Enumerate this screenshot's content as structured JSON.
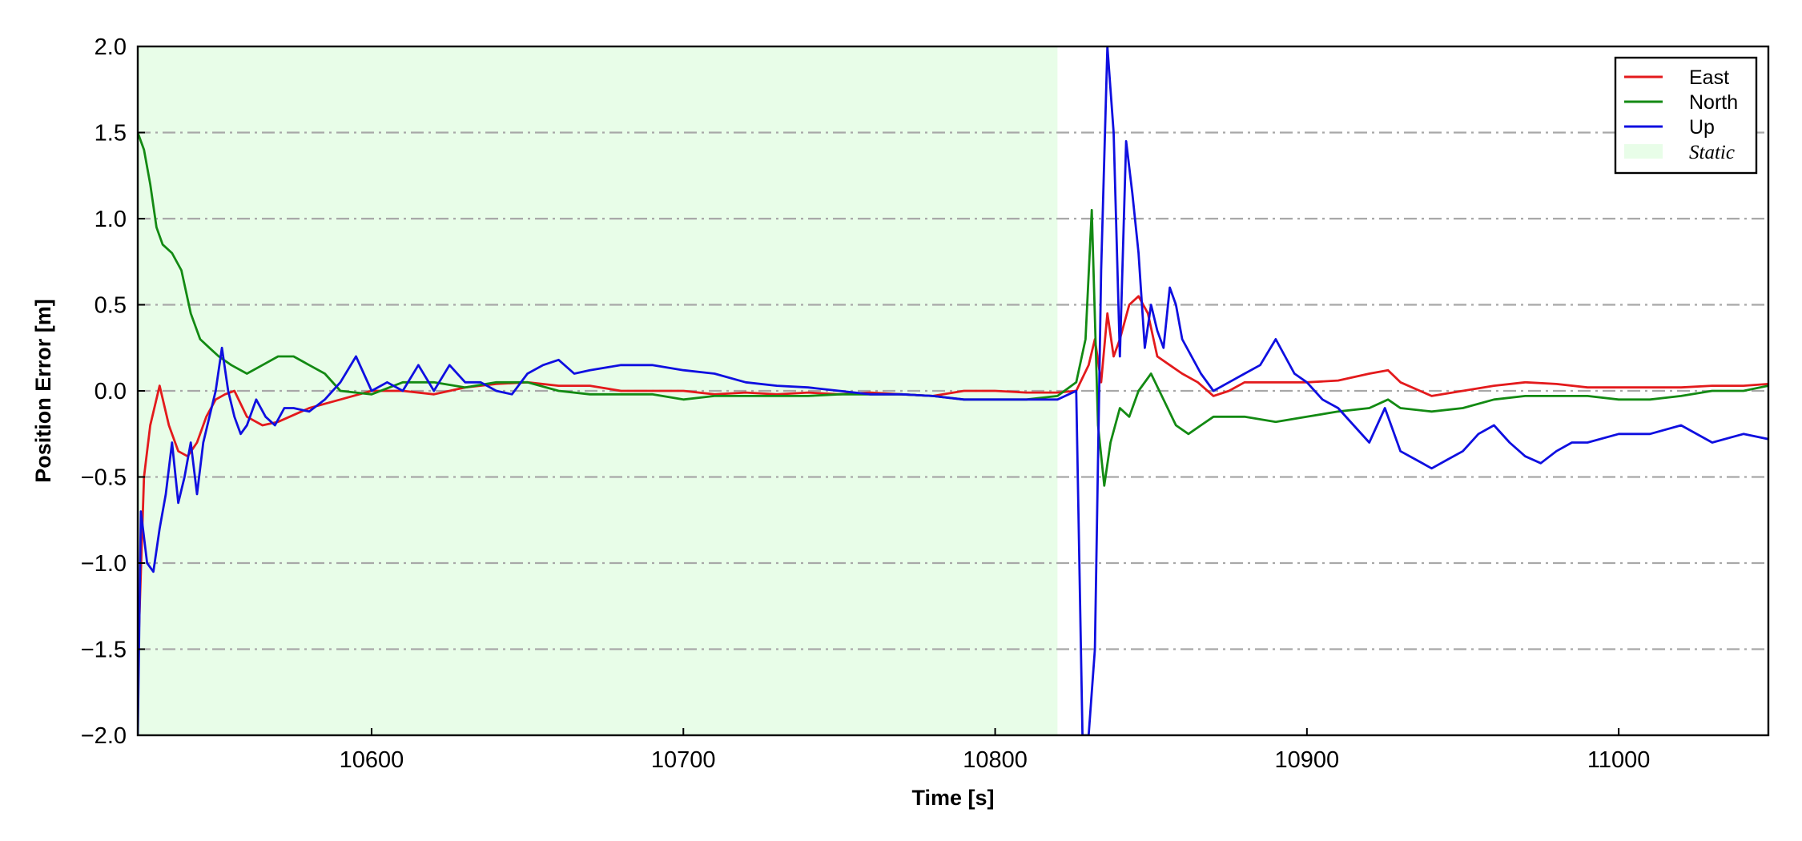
{
  "chart_data": {
    "type": "line",
    "xlabel": "Time [s]",
    "ylabel": "Position Error [m]",
    "xlim": [
      10525,
      11048
    ],
    "ylim": [
      -2.0,
      2.0
    ],
    "xticks": [
      10600,
      10700,
      10800,
      10900,
      11000
    ],
    "xtick_labels": [
      "10600",
      "10700",
      "10800",
      "10900",
      "11000"
    ],
    "yticks": [
      2.0,
      1.5,
      1.0,
      0.5,
      0.0,
      -0.5,
      -1.0,
      -1.5,
      -2.0
    ],
    "ytick_labels": [
      "2.0",
      "1.5",
      "1.0",
      "0.5",
      "0.0",
      "−0.5",
      "−1.0",
      "−1.5",
      "−2.0"
    ],
    "grid": "horizontal dash-dot",
    "legend_position": "top-right",
    "static_region": {
      "label": "Static",
      "x": [
        10525,
        10820
      ],
      "color": "#e8fde8"
    },
    "series": [
      {
        "name": "East",
        "color": "#e31a1c",
        "x": [
          10525,
          10527,
          10529,
          10532,
          10535,
          10538,
          10541,
          10544,
          10547,
          10550,
          10553,
          10556,
          10560,
          10565,
          10570,
          10580,
          10590,
          10600,
          10610,
          10620,
          10630,
          10640,
          10650,
          10660,
          10670,
          10680,
          10690,
          10700,
          10710,
          10720,
          10730,
          10740,
          10750,
          10760,
          10770,
          10780,
          10790,
          10800,
          10810,
          10820,
          10826,
          10830,
          10832,
          10834,
          10836,
          10838,
          10840,
          10843,
          10846,
          10849,
          10852,
          10856,
          10860,
          10865,
          10870,
          10875,
          10880,
          10890,
          10900,
          10910,
          10920,
          10926,
          10930,
          10940,
          10950,
          10960,
          10970,
          10980,
          10990,
          11000,
          11010,
          11020,
          11030,
          11040,
          11048
        ],
        "values": [
          -1.6,
          -0.5,
          -0.2,
          0.03,
          -0.2,
          -0.35,
          -0.38,
          -0.3,
          -0.15,
          -0.05,
          -0.02,
          0.0,
          -0.15,
          -0.2,
          -0.18,
          -0.1,
          -0.05,
          0.0,
          0.0,
          -0.02,
          0.02,
          0.04,
          0.05,
          0.03,
          0.03,
          0.0,
          0.0,
          0.0,
          -0.02,
          -0.01,
          -0.02,
          -0.01,
          -0.02,
          -0.01,
          -0.02,
          -0.03,
          0.0,
          0.0,
          -0.01,
          -0.01,
          0.0,
          0.15,
          0.3,
          0.05,
          0.45,
          0.2,
          0.3,
          0.5,
          0.55,
          0.45,
          0.2,
          0.15,
          0.1,
          0.05,
          -0.03,
          0.0,
          0.05,
          0.05,
          0.05,
          0.06,
          0.1,
          0.12,
          0.05,
          -0.03,
          0.0,
          0.03,
          0.05,
          0.04,
          0.02,
          0.02,
          0.02,
          0.02,
          0.03,
          0.03,
          0.04
        ]
      },
      {
        "name": "North",
        "color": "#138a13",
        "x": [
          10525,
          10527,
          10529,
          10531,
          10533,
          10536,
          10539,
          10542,
          10545,
          10548,
          10551,
          10555,
          10560,
          10565,
          10570,
          10575,
          10580,
          10585,
          10590,
          10600,
          10610,
          10620,
          10630,
          10640,
          10650,
          10660,
          10670,
          10680,
          10690,
          10700,
          10710,
          10720,
          10730,
          10740,
          10750,
          10760,
          10770,
          10780,
          10790,
          10800,
          10810,
          10820,
          10826,
          10829,
          10831,
          10833,
          10835,
          10837,
          10840,
          10843,
          10846,
          10850,
          10854,
          10858,
          10862,
          10866,
          10870,
          10880,
          10890,
          10900,
          10910,
          10920,
          10926,
          10930,
          10940,
          10950,
          10960,
          10970,
          10980,
          10990,
          11000,
          11010,
          11020,
          11030,
          11040,
          11048
        ],
        "values": [
          1.5,
          1.4,
          1.2,
          0.95,
          0.85,
          0.8,
          0.7,
          0.45,
          0.3,
          0.25,
          0.2,
          0.15,
          0.1,
          0.15,
          0.2,
          0.2,
          0.15,
          0.1,
          0.0,
          -0.02,
          0.05,
          0.05,
          0.02,
          0.05,
          0.05,
          0.0,
          -0.02,
          -0.02,
          -0.02,
          -0.05,
          -0.03,
          -0.03,
          -0.03,
          -0.03,
          -0.02,
          -0.02,
          -0.02,
          -0.03,
          -0.05,
          -0.05,
          -0.05,
          -0.03,
          0.05,
          0.3,
          1.05,
          -0.2,
          -0.55,
          -0.3,
          -0.1,
          -0.15,
          0.0,
          0.1,
          -0.05,
          -0.2,
          -0.25,
          -0.2,
          -0.15,
          -0.15,
          -0.18,
          -0.15,
          -0.12,
          -0.1,
          -0.05,
          -0.1,
          -0.12,
          -0.1,
          -0.05,
          -0.03,
          -0.03,
          -0.03,
          -0.05,
          -0.05,
          -0.03,
          0.0,
          0.0,
          0.03
        ]
      },
      {
        "name": "Up",
        "color": "#0f0fe0",
        "x": [
          10525,
          10526,
          10528,
          10530,
          10532,
          10534,
          10536,
          10538,
          10540,
          10542,
          10544,
          10546,
          10548,
          10550,
          10552,
          10554,
          10556,
          10558,
          10560,
          10563,
          10566,
          10569,
          10572,
          10575,
          10580,
          10585,
          10590,
          10595,
          10600,
          10605,
          10610,
          10615,
          10620,
          10625,
          10630,
          10635,
          10640,
          10645,
          10650,
          10655,
          10660,
          10665,
          10670,
          10680,
          10690,
          10700,
          10710,
          10720,
          10730,
          10740,
          10750,
          10760,
          10770,
          10780,
          10790,
          10800,
          10810,
          10820,
          10826,
          10828,
          10830,
          10832,
          10834,
          10836,
          10838,
          10840,
          10842,
          10844,
          10846,
          10848,
          10850,
          10852,
          10854,
          10856,
          10858,
          10860,
          10863,
          10866,
          10870,
          10875,
          10880,
          10885,
          10890,
          10893,
          10896,
          10900,
          10905,
          10910,
          10915,
          10920,
          10925,
          10927,
          10930,
          10935,
          10940,
          10945,
          10950,
          10955,
          10960,
          10965,
          10970,
          10975,
          10980,
          10985,
          10990,
          11000,
          11010,
          11020,
          11030,
          11040,
          11048
        ],
        "values": [
          -2.0,
          -0.7,
          -1.0,
          -1.05,
          -0.8,
          -0.6,
          -0.3,
          -0.65,
          -0.5,
          -0.3,
          -0.6,
          -0.3,
          -0.15,
          0.0,
          0.25,
          0.0,
          -0.15,
          -0.25,
          -0.2,
          -0.05,
          -0.15,
          -0.2,
          -0.1,
          -0.1,
          -0.12,
          -0.05,
          0.05,
          0.2,
          0.0,
          0.05,
          0.0,
          0.15,
          0.0,
          0.15,
          0.05,
          0.05,
          0.0,
          -0.02,
          0.1,
          0.15,
          0.18,
          0.1,
          0.12,
          0.15,
          0.15,
          0.12,
          0.1,
          0.05,
          0.03,
          0.02,
          0.0,
          -0.02,
          -0.02,
          -0.03,
          -0.05,
          -0.05,
          -0.05,
          -0.05,
          0.0,
          -2.0,
          -2.0,
          -1.5,
          0.7,
          2.0,
          1.5,
          0.2,
          1.45,
          1.15,
          0.8,
          0.25,
          0.5,
          0.35,
          0.25,
          0.6,
          0.5,
          0.3,
          0.2,
          0.1,
          0.0,
          0.05,
          0.1,
          0.15,
          0.3,
          0.2,
          0.1,
          0.05,
          -0.05,
          -0.1,
          -0.2,
          -0.3,
          -0.1,
          -0.2,
          -0.35,
          -0.4,
          -0.45,
          -0.4,
          -0.35,
          -0.25,
          -0.2,
          -0.3,
          -0.38,
          -0.42,
          -0.35,
          -0.3,
          -0.3,
          -0.25,
          -0.25,
          -0.2,
          -0.3,
          -0.25,
          -0.28
        ]
      }
    ]
  }
}
